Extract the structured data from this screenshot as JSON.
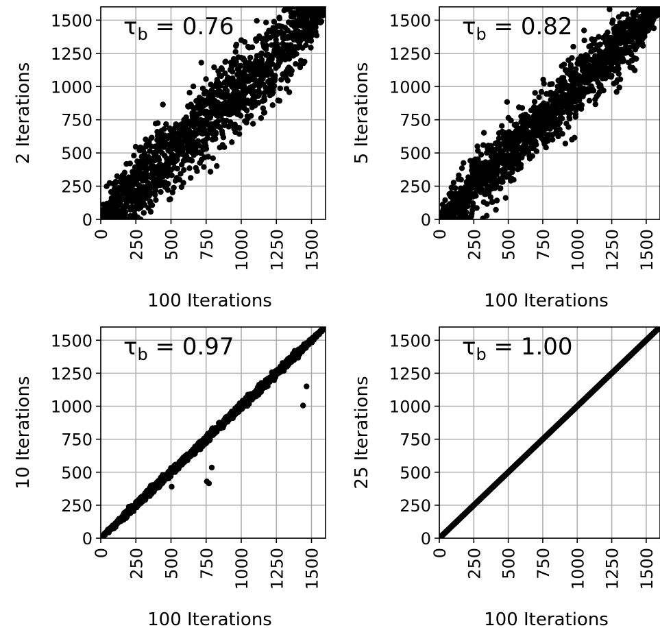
{
  "chart_data": [
    {
      "type": "scatter",
      "title": "",
      "annotation": {
        "tau": "τ",
        "sub": "b",
        "rest": " = 0.76"
      },
      "tau_b": 0.76,
      "xlabel": "100 Iterations",
      "ylabel": "2 Iterations",
      "xlim": [
        0,
        1600
      ],
      "ylim": [
        0,
        1600
      ],
      "xticks": [
        "0",
        "250",
        "500",
        "750",
        "1000",
        "1250",
        "1500"
      ],
      "yticks": [
        "0",
        "250",
        "500",
        "750",
        "1000",
        "1250",
        "1500"
      ],
      "grid": true,
      "point_color": "#000000",
      "n_points": 1500,
      "spread": 150,
      "seed": 11
    },
    {
      "type": "scatter",
      "title": "",
      "annotation": {
        "tau": "τ",
        "sub": "b",
        "rest": " = 0.82"
      },
      "tau_b": 0.82,
      "xlabel": "100 Iterations",
      "ylabel": "5 Iterations",
      "xlim": [
        0,
        1600
      ],
      "ylim": [
        0,
        1600
      ],
      "xticks": [
        "0",
        "250",
        "500",
        "750",
        "1000",
        "1250",
        "1500"
      ],
      "yticks": [
        "0",
        "250",
        "500",
        "750",
        "1000",
        "1250",
        "1500"
      ],
      "grid": true,
      "point_color": "#000000",
      "n_points": 1500,
      "spread": 115,
      "seed": 23
    },
    {
      "type": "scatter",
      "title": "",
      "annotation": {
        "tau": "τ",
        "sub": "b",
        "rest": " = 0.97"
      },
      "tau_b": 0.97,
      "xlabel": "100 Iterations",
      "ylabel": "10 Iterations",
      "xlim": [
        0,
        1600
      ],
      "ylim": [
        0,
        1600
      ],
      "xticks": [
        "0",
        "250",
        "500",
        "750",
        "1000",
        "1250",
        "1500"
      ],
      "yticks": [
        "0",
        "250",
        "500",
        "750",
        "1000",
        "1250",
        "1500"
      ],
      "grid": true,
      "point_color": "#000000",
      "n_points": 1500,
      "spread": 14,
      "seed": 37,
      "outliers": [
        [
          1440,
          1005
        ],
        [
          1465,
          1150
        ],
        [
          755,
          430
        ],
        [
          770,
          415
        ],
        [
          790,
          535
        ],
        [
          505,
          390
        ],
        [
          1380,
          1420
        ]
      ]
    },
    {
      "type": "scatter",
      "title": "",
      "annotation": {
        "tau": "τ",
        "sub": "b",
        "rest": " = 1.00"
      },
      "tau_b": 1.0,
      "xlabel": "100 Iterations",
      "ylabel": "25 Iterations",
      "xlim": [
        0,
        1600
      ],
      "ylim": [
        0,
        1600
      ],
      "xticks": [
        "0",
        "250",
        "500",
        "750",
        "1000",
        "1250",
        "1500"
      ],
      "yticks": [
        "0",
        "250",
        "500",
        "750",
        "1000",
        "1250",
        "1500"
      ],
      "grid": true,
      "point_color": "#000000",
      "n_points": 1500,
      "spread": 0,
      "seed": 41
    }
  ]
}
